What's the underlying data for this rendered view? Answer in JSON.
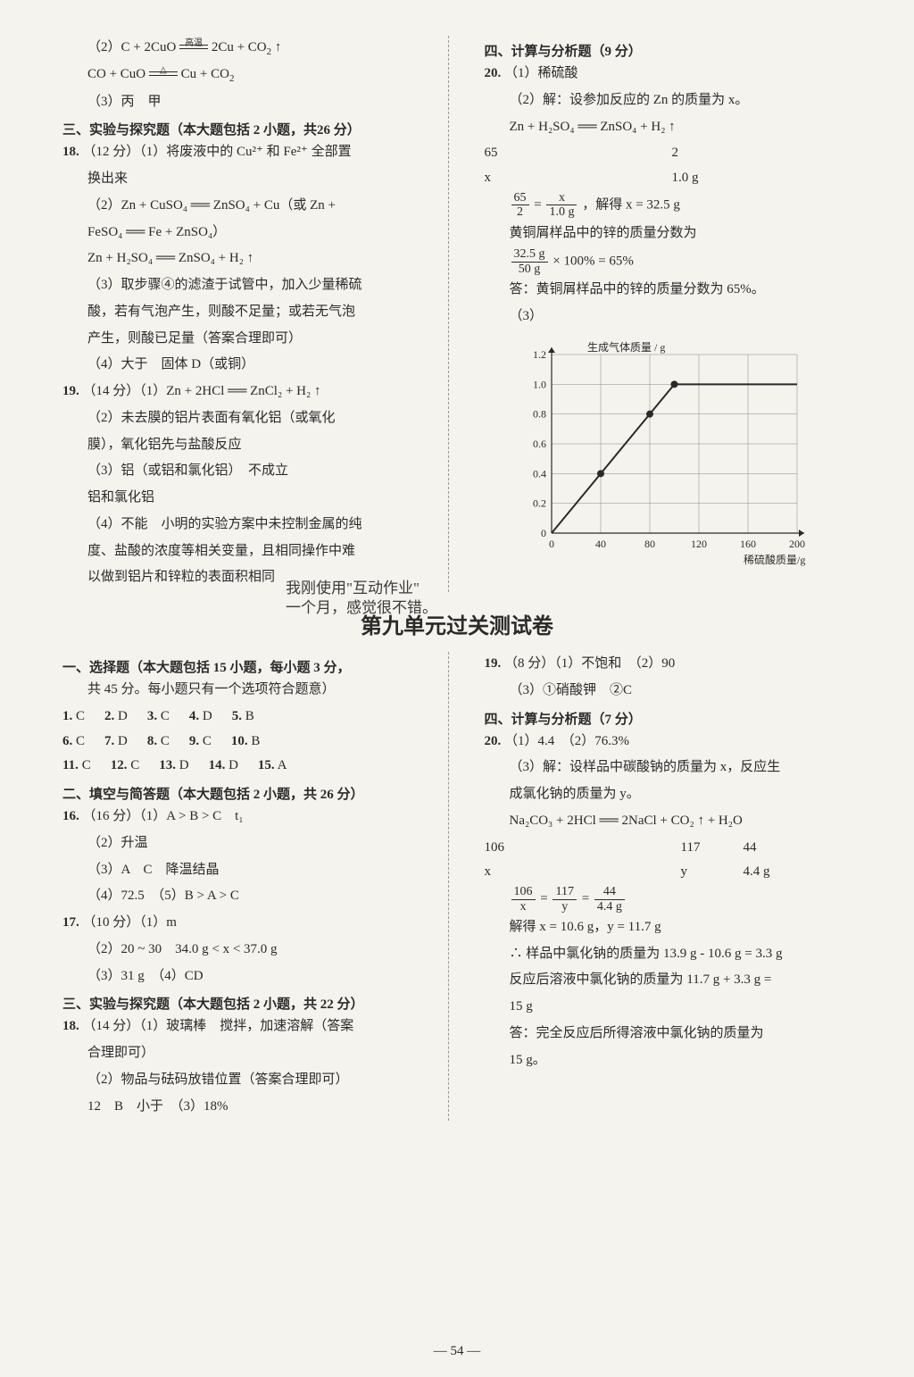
{
  "top_section": {
    "left": {
      "l1": "（2）C + 2CuO ══ 2Cu + CO₂ ↑",
      "l1_cond": "高温",
      "l2": "CO + CuO ══ Cu + CO₂",
      "l2_cond": "△",
      "l3": "（3）丙　甲",
      "sec3": "三、实验与探究题（本大题包括 2 小题，共26 分）",
      "q18": "18.",
      "q18_1": "（12 分）（1）将废液中的 Cu²⁺ 和 Fe²⁺ 全部置",
      "q18_1b": "换出来",
      "q18_2": "（2）Zn + CuSO₄ ══ ZnSO₄ + Cu（或 Zn +",
      "q18_2b": "FeSO₄ ══ Fe + ZnSO₄）",
      "q18_2c": "Zn + H₂SO₄ ══ ZnSO₄ + H₂ ↑",
      "q18_3": "（3）取步骤④的滤渣于试管中，加入少量稀硫",
      "q18_3b": "酸，若有气泡产生，则酸不足量；或若无气泡",
      "q18_3c": "产生，则酸已足量（答案合理即可）",
      "q18_4": "（4）大于　固体 D（或铜）",
      "q19": "19.",
      "q19_1": "（14 分）（1）Zn + 2HCl ══ ZnCl₂ + H₂ ↑",
      "q19_2": "（2）未去膜的铝片表面有氧化铝（或氧化",
      "q19_2b": "膜），氧化铝先与盐酸反应",
      "q19_3": "（3）铝（或铝和氯化铝）　不成立",
      "q19_3b": "铝和氯化铝",
      "q19_4": "（4）不能　小明的实验方案中未控制金属的纯",
      "q19_4b": "度、盐酸的浓度等相关变量，且相同操作中难",
      "q19_4c": "以做到铝片和锌粒的表面积相同"
    },
    "right": {
      "sec4": "四、计算与分析题（9 分）",
      "q20": "20.",
      "q20_1": "（1）稀硫酸",
      "q20_2": "（2）解：设参加反应的 Zn 的质量为 x。",
      "eq": "Zn + H₂SO₄ ══ ZnSO₄ + H₂ ↑",
      "stoich1_a": "65",
      "stoich1_b": "2",
      "stoich2_a": "x",
      "stoich2_b": "1.0 g",
      "solve": "，解得 x = 32.5 g",
      "frac_l_num": "65",
      "frac_l_den": "2",
      "frac_r_num": "x",
      "frac_r_den": "1.0 g",
      "mass_line": "黄铜屑样品中的锌的质量分数为",
      "calc_num": "32.5 g",
      "calc_den": "50 g",
      "calc_rest": "× 100% = 65%",
      "ans": "答：黄铜屑样品中的锌的质量分数为 65%。",
      "q20_3": "（3）"
    }
  },
  "handwriting": {
    "l1": "我刚使用\"互动作业\"",
    "l2": "一个月，感觉很不错。"
  },
  "chart": {
    "ylabel": "生成气体质量 / g",
    "xlabel": "稀硫酸质量/g",
    "xlim": [
      0,
      200
    ],
    "ylim": [
      0,
      1.2
    ],
    "xticks": [
      0,
      40,
      80,
      120,
      160,
      200
    ],
    "yticks": [
      0,
      0.2,
      0.4,
      0.6,
      0.8,
      1.0,
      1.2
    ],
    "line_points": [
      [
        0,
        0
      ],
      [
        40,
        0.4
      ],
      [
        80,
        0.8
      ],
      [
        100,
        1.0
      ],
      [
        200,
        1.0
      ]
    ],
    "markers": [
      [
        40,
        0.4
      ],
      [
        80,
        0.8
      ],
      [
        100,
        1.0
      ]
    ],
    "line_color": "#2a2a2a",
    "grid_color": "#888888",
    "bg_color": "#f5f3ee",
    "font_size": 12,
    "line_width": 2,
    "marker_size": 4
  },
  "unit9_title": "第九单元过关测试卷",
  "bottom_section": {
    "left": {
      "sec1": "一、选择题（本大题包括 15 小题，每小题 3 分，",
      "sec1b": "共 45 分。每小题只有一个选项符合题意）",
      "row1": [
        [
          "1.",
          "C"
        ],
        [
          "2.",
          "D"
        ],
        [
          "3.",
          "C"
        ],
        [
          "4.",
          "D"
        ],
        [
          "5.",
          "B"
        ]
      ],
      "row2": [
        [
          "6.",
          "C"
        ],
        [
          "7.",
          "D"
        ],
        [
          "8.",
          "C"
        ],
        [
          "9.",
          "C"
        ],
        [
          "10.",
          "B"
        ]
      ],
      "row3": [
        [
          "11.",
          "C"
        ],
        [
          "12.",
          "C"
        ],
        [
          "13.",
          "D"
        ],
        [
          "14.",
          "D"
        ],
        [
          "15.",
          "A"
        ]
      ],
      "sec2": "二、填空与简答题（本大题包括 2 小题，共 26 分）",
      "q16": "16.",
      "q16_1": "（16 分）（1）A > B > C　t₁",
      "q16_2": "（2）升温",
      "q16_3": "（3）A　C　降温结晶",
      "q16_4": "（4）72.5　（5）B > A > C",
      "q17": "17.",
      "q17_1": "（10 分）（1）m",
      "q17_2": "（2）20 ~ 30　34.0 g < x < 37.0 g",
      "q17_3": "（3）31 g　（4）CD",
      "sec3": "三、实验与探究题（本大题包括 2 小题，共 22 分）",
      "q18": "18.",
      "q18_1": "（14 分）（1）玻璃棒　搅拌，加速溶解（答案",
      "q18_1b": "合理即可）",
      "q18_2": "（2）物品与砝码放错位置（答案合理即可）",
      "q18_2b": "12　B　小于　（3）18%"
    },
    "right": {
      "q19": "19.",
      "q19_1": "（8 分）（1）不饱和　（2）90",
      "q19_2": "（3）①硝酸钾　②C",
      "sec4": "四、计算与分析题（7 分）",
      "q20": "20.",
      "q20_1": "（1）4.4　（2）76.3%",
      "q20_2": "（3）解：设样品中碳酸钠的质量为 x，反应生",
      "q20_2b": "成氯化钠的质量为 y。",
      "eq": "Na₂CO₃ + 2HCl ══ 2NaCl + CO₂ ↑ + H₂O",
      "stoich1_a": "106",
      "stoich1_b": "117",
      "stoich1_c": "44",
      "stoich2_a": "x",
      "stoich2_b": "y",
      "stoich2_c": "4.4 g",
      "frac1_num": "106",
      "frac1_den": "x",
      "frac2_num": "117",
      "frac2_den": "y",
      "frac3_num": "44",
      "frac3_den": "4.4 g",
      "solve": "解得 x = 10.6 g，y = 11.7 g",
      "line1": "∴ 样品中氯化钠的质量为 13.9 g - 10.6 g = 3.3 g",
      "line2": "反应后溶液中氯化钠的质量为 11.7 g + 3.3 g =",
      "line2b": "15 g",
      "ans": "答：完全反应后所得溶液中氯化钠的质量为",
      "ansb": "15 g。"
    }
  },
  "page_number": "— 54 —"
}
